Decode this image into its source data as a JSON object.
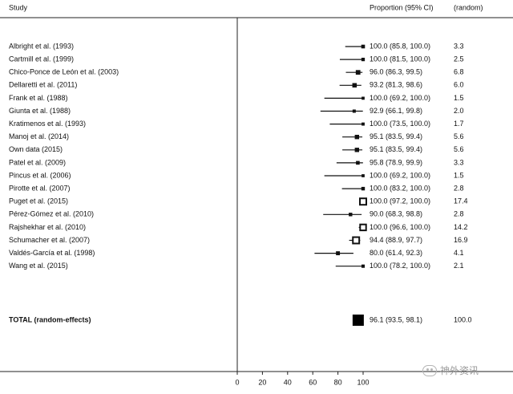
{
  "chart_data": {
    "type": "forest",
    "headers": {
      "study": "Study",
      "proportion": "Proportion (95% CI)",
      "weight": "(random)"
    },
    "xaxis": {
      "min": 0,
      "max": 100,
      "ticks": [
        0,
        20,
        40,
        60,
        80,
        100
      ]
    },
    "studies": [
      {
        "name": "Albright et al. (1993)",
        "est": 100.0,
        "lo": 85.8,
        "hi": 100.0,
        "ci": "100.0 (85.8, 100.0)",
        "weight": "3.3"
      },
      {
        "name": "Cartmill et al. (1999)",
        "est": 100.0,
        "lo": 81.5,
        "hi": 100.0,
        "ci": "100.0 (81.5, 100.0)",
        "weight": "2.5"
      },
      {
        "name": "Chico-Ponce de León et al. (2003)",
        "est": 96.0,
        "lo": 86.3,
        "hi": 99.5,
        "ci": "96.0 (86.3, 99.5)",
        "weight": "6.8"
      },
      {
        "name": "Dellaretti et al. (2011)",
        "est": 93.2,
        "lo": 81.3,
        "hi": 98.6,
        "ci": "93.2 (81.3, 98.6)",
        "weight": "6.0"
      },
      {
        "name": "Frank et al. (1988)",
        "est": 100.0,
        "lo": 69.2,
        "hi": 100.0,
        "ci": "100.0 (69.2, 100.0)",
        "weight": "1.5"
      },
      {
        "name": "Giunta et al. (1988)",
        "est": 92.9,
        "lo": 66.1,
        "hi": 99.8,
        "ci": "92.9 (66.1, 99.8)",
        "weight": "2.0"
      },
      {
        "name": "Kratimenos et al. (1993)",
        "est": 100.0,
        "lo": 73.5,
        "hi": 100.0,
        "ci": "100.0 (73.5, 100.0)",
        "weight": "1.7"
      },
      {
        "name": "Manoj et al. (2014)",
        "est": 95.1,
        "lo": 83.5,
        "hi": 99.4,
        "ci": "95.1 (83.5, 99.4)",
        "weight": "5.6"
      },
      {
        "name": "Own data (2015)",
        "est": 95.1,
        "lo": 83.5,
        "hi": 99.4,
        "ci": "95.1 (83.5, 99.4)",
        "weight": "5.6"
      },
      {
        "name": "Patel et al. (2009)",
        "est": 95.8,
        "lo": 78.9,
        "hi": 99.9,
        "ci": "95.8 (78.9, 99.9)",
        "weight": "3.3"
      },
      {
        "name": "Pincus et al. (2006)",
        "est": 100.0,
        "lo": 69.2,
        "hi": 100.0,
        "ci": "100.0 (69.2, 100.0)",
        "weight": "1.5"
      },
      {
        "name": "Pirotte et al. (2007)",
        "est": 100.0,
        "lo": 83.2,
        "hi": 100.0,
        "ci": "100.0 (83.2, 100.0)",
        "weight": "2.8"
      },
      {
        "name": "Puget et al. (2015)",
        "est": 100.0,
        "lo": 97.2,
        "hi": 100.0,
        "ci": "100.0 (97.2, 100.0)",
        "weight": "17.4"
      },
      {
        "name": "Pérez-Gómez et al. (2010)",
        "est": 90.0,
        "lo": 68.3,
        "hi": 98.8,
        "ci": "90.0 (68.3, 98.8)",
        "weight": "2.8"
      },
      {
        "name": "Rajshekhar et al. (2010)",
        "est": 100.0,
        "lo": 96.6,
        "hi": 100.0,
        "ci": "100.0 (96.6, 100.0)",
        "weight": "14.2"
      },
      {
        "name": "Schumacher et al. (2007)",
        "est": 94.4,
        "lo": 88.9,
        "hi": 97.7,
        "ci": "94.4 (88.9, 97.7)",
        "weight": "16.9"
      },
      {
        "name": "Valdés-García et al. (1998)",
        "est": 80.0,
        "lo": 61.4,
        "hi": 92.3,
        "ci": "80.0 (61.4, 92.3)",
        "weight": "4.1"
      },
      {
        "name": "Wang et al. (2015)",
        "est": 100.0,
        "lo": 78.2,
        "hi": 100.0,
        "ci": "100.0 (78.2, 100.0)",
        "weight": "2.1"
      }
    ],
    "total": {
      "name": "TOTAL (random-effects)",
      "est": 96.1,
      "lo": 93.5,
      "hi": 98.1,
      "ci": "96.1 (93.5, 98.1)",
      "weight": "100.0"
    }
  },
  "watermark": {
    "text": "神外资讯",
    "icon": "wechat-icon"
  }
}
